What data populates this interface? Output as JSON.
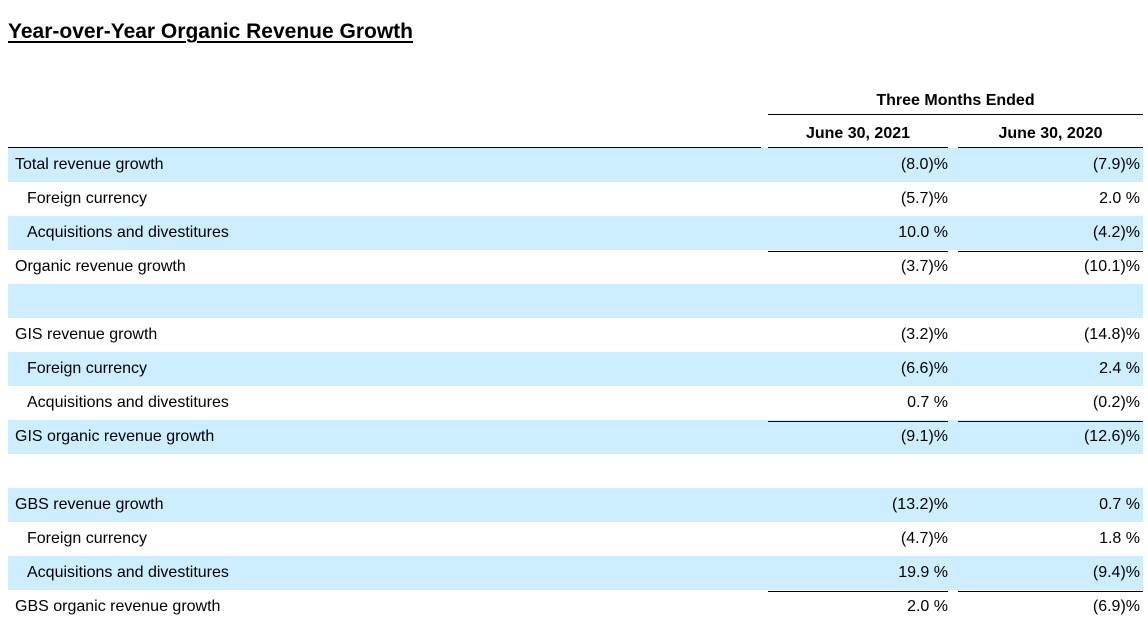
{
  "title": "Year-over-Year Organic Revenue Growth",
  "period_header": "Three Months Ended",
  "columns": [
    "June 30, 2021",
    "June 30, 2020"
  ],
  "rows": [
    {
      "label": "Total revenue growth",
      "v2021": "(8.0)%",
      "v2020": "(7.9)%"
    },
    {
      "label": "Foreign currency",
      "v2021": "(5.7)%",
      "v2020": "2.0 %"
    },
    {
      "label": "Acquisitions and divestitures",
      "v2021": "10.0 %",
      "v2020": "(4.2)%"
    },
    {
      "label": "Organic revenue growth",
      "v2021": "(3.7)%",
      "v2020": "(10.1)%"
    },
    {
      "label": "",
      "v2021": "",
      "v2020": ""
    },
    {
      "label": "GIS revenue growth",
      "v2021": "(3.2)%",
      "v2020": "(14.8)%"
    },
    {
      "label": "Foreign currency",
      "v2021": "(6.6)%",
      "v2020": "2.4 %"
    },
    {
      "label": "Acquisitions and divestitures",
      "v2021": "0.7 %",
      "v2020": "(0.2)%"
    },
    {
      "label": "GIS organic revenue growth",
      "v2021": "(9.1)%",
      "v2020": "(12.6)%"
    },
    {
      "label": "",
      "v2021": "",
      "v2020": ""
    },
    {
      "label": "GBS revenue growth",
      "v2021": "(13.2)%",
      "v2020": "0.7 %"
    },
    {
      "label": "Foreign currency",
      "v2021": "(4.7)%",
      "v2020": "1.8 %"
    },
    {
      "label": "Acquisitions and divestitures",
      "v2021": "19.9 %",
      "v2020": "(9.4)%"
    },
    {
      "label": "GBS organic revenue growth",
      "v2021": "2.0 %",
      "v2020": "(6.9)%"
    }
  ]
}
